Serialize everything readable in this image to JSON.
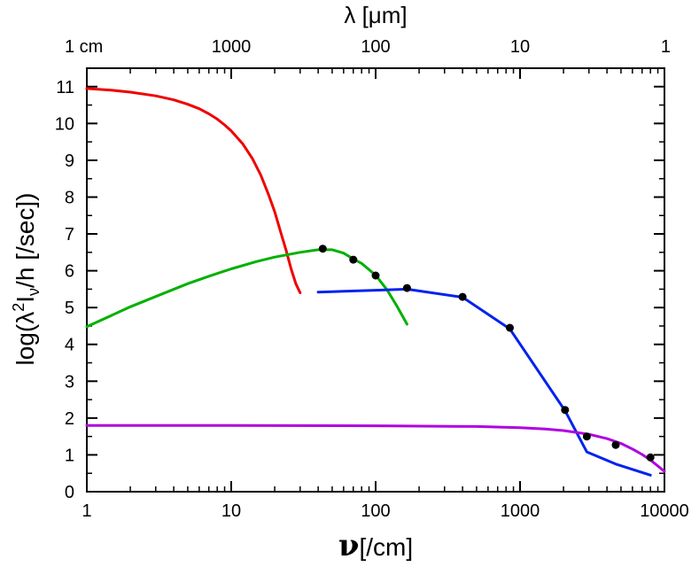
{
  "chart_data": {
    "type": "line",
    "x_scale": "log",
    "xlabel_symbol": "ν",
    "xlabel_rest": "[/cm]",
    "xlim": [
      1,
      10000
    ],
    "ylim": [
      0,
      11.5
    ],
    "ylabel_parts": {
      "a": "log(λ",
      "sup": "2",
      "b": "I",
      "sub": "ν",
      "c": "/h [/sec])"
    },
    "top_axis_label": "λ [μm]",
    "x_ticks": [
      {
        "value": 1,
        "label": "1"
      },
      {
        "value": 10,
        "label": "10"
      },
      {
        "value": 100,
        "label": "100"
      },
      {
        "value": 1000,
        "label": "1000"
      },
      {
        "value": 10000,
        "label": "10000"
      }
    ],
    "y_ticks": [
      {
        "value": 0,
        "label": "0"
      },
      {
        "value": 1,
        "label": "1"
      },
      {
        "value": 2,
        "label": "2"
      },
      {
        "value": 3,
        "label": "3"
      },
      {
        "value": 4,
        "label": "4"
      },
      {
        "value": 5,
        "label": "5"
      },
      {
        "value": 6,
        "label": "6"
      },
      {
        "value": 7,
        "label": "7"
      },
      {
        "value": 8,
        "label": "8"
      },
      {
        "value": 9,
        "label": "9"
      },
      {
        "value": 10,
        "label": "10"
      },
      {
        "value": 11,
        "label": "11"
      }
    ],
    "top_ticks": [
      {
        "value": 1,
        "label": "1 cm"
      },
      {
        "value": 10,
        "label": "1000"
      },
      {
        "value": 100,
        "label": "100"
      },
      {
        "value": 1000,
        "label": "10"
      },
      {
        "value": 10000,
        "label": "1"
      }
    ],
    "series": [
      {
        "color": "#ee0000",
        "x": [
          1,
          1.5,
          2,
          3,
          4,
          5,
          6,
          7,
          8,
          9,
          10,
          12,
          14,
          16,
          18,
          20,
          22,
          24,
          26,
          28,
          30
        ],
        "y": [
          10.95,
          10.9,
          10.85,
          10.75,
          10.64,
          10.52,
          10.4,
          10.26,
          10.12,
          9.96,
          9.8,
          9.45,
          9.05,
          8.6,
          8.1,
          7.6,
          7.05,
          6.55,
          6.05,
          5.65,
          5.4
        ]
      },
      {
        "color": "#00b000",
        "x": [
          1,
          2,
          3,
          5,
          7,
          10,
          15,
          20,
          30,
          40,
          50,
          60,
          70,
          80,
          100,
          120,
          140,
          165
        ],
        "y": [
          4.48,
          5.02,
          5.3,
          5.65,
          5.85,
          6.05,
          6.25,
          6.37,
          6.5,
          6.57,
          6.57,
          6.48,
          6.32,
          6.2,
          5.88,
          5.48,
          5.05,
          4.55
        ]
      },
      {
        "color": "#0022ee",
        "x": [
          40,
          100,
          165,
          400,
          850,
          2050,
          2900,
          4600,
          8000
        ],
        "y": [
          5.42,
          5.47,
          5.5,
          5.28,
          4.42,
          2.2,
          1.08,
          0.75,
          0.45
        ]
      },
      {
        "color": "#b000e0",
        "x": [
          1,
          10,
          100,
          500,
          1000,
          1500,
          2000,
          3000,
          4000,
          5000,
          6000,
          7000,
          8000,
          9000,
          10000
        ],
        "y": [
          1.8,
          1.8,
          1.79,
          1.77,
          1.74,
          1.7,
          1.66,
          1.56,
          1.44,
          1.31,
          1.16,
          1.01,
          0.86,
          0.7,
          0.55
        ]
      }
    ],
    "points": {
      "color": "#000000",
      "x": [
        43,
        70,
        100,
        165,
        400,
        850,
        2050,
        2900,
        4600,
        8000
      ],
      "y": [
        6.6,
        6.3,
        5.87,
        5.53,
        5.29,
        4.45,
        2.22,
        1.5,
        1.27,
        0.93
      ]
    }
  }
}
